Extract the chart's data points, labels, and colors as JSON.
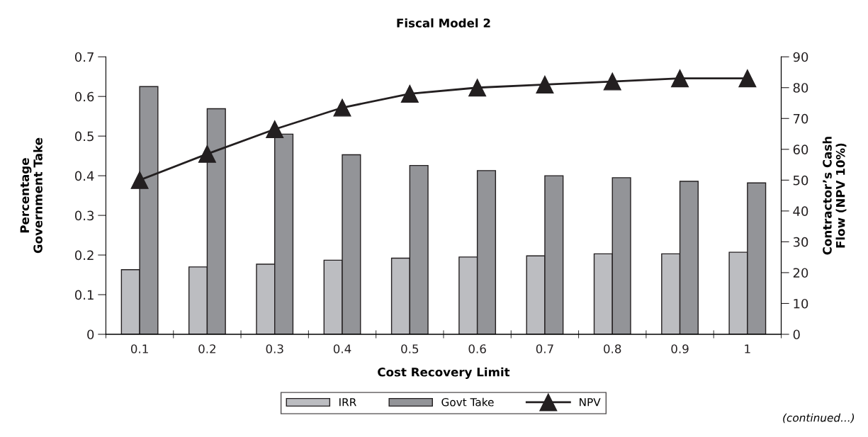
{
  "chart_data": {
    "type": "bar",
    "title": "Fiscal Model 2",
    "xlabel": "Cost Recovery Limit",
    "ylabel": "Percentage\nGovernment Take",
    "y2label": "Contractor’s Cash\nFlow (NPV 10%)",
    "categories": [
      "0.1",
      "0.2",
      "0.3",
      "0.4",
      "0.5",
      "0.6",
      "0.7",
      "0.8",
      "0.9",
      "1"
    ],
    "series": [
      {
        "name": "IRR",
        "color": "#bcbdc1",
        "values": [
          0.163,
          0.17,
          0.177,
          0.187,
          0.192,
          0.195,
          0.198,
          0.203,
          0.203,
          0.207
        ]
      },
      {
        "name": "Govt Take",
        "color": "#939498",
        "values": [
          0.625,
          0.569,
          0.505,
          0.453,
          0.426,
          0.413,
          0.4,
          0.395,
          0.386,
          0.382
        ]
      },
      {
        "name": "NPV",
        "type": "line",
        "axis": "y2",
        "color": "#231f20",
        "marker": "triangle",
        "values": [
          50,
          58.5,
          66.5,
          73.5,
          78,
          80,
          81,
          82,
          83,
          83
        ]
      }
    ],
    "ylim": [
      0,
      0.7
    ],
    "yticks": [
      0,
      0.1,
      0.2,
      0.3,
      0.4,
      0.5,
      0.6,
      0.7
    ],
    "y2lim": [
      0,
      90
    ],
    "y2ticks": [
      0,
      10,
      20,
      30,
      40,
      50,
      60,
      70,
      80,
      90
    ],
    "legend": "bottom",
    "grid": false,
    "annotations": [
      "(continued...)"
    ]
  }
}
